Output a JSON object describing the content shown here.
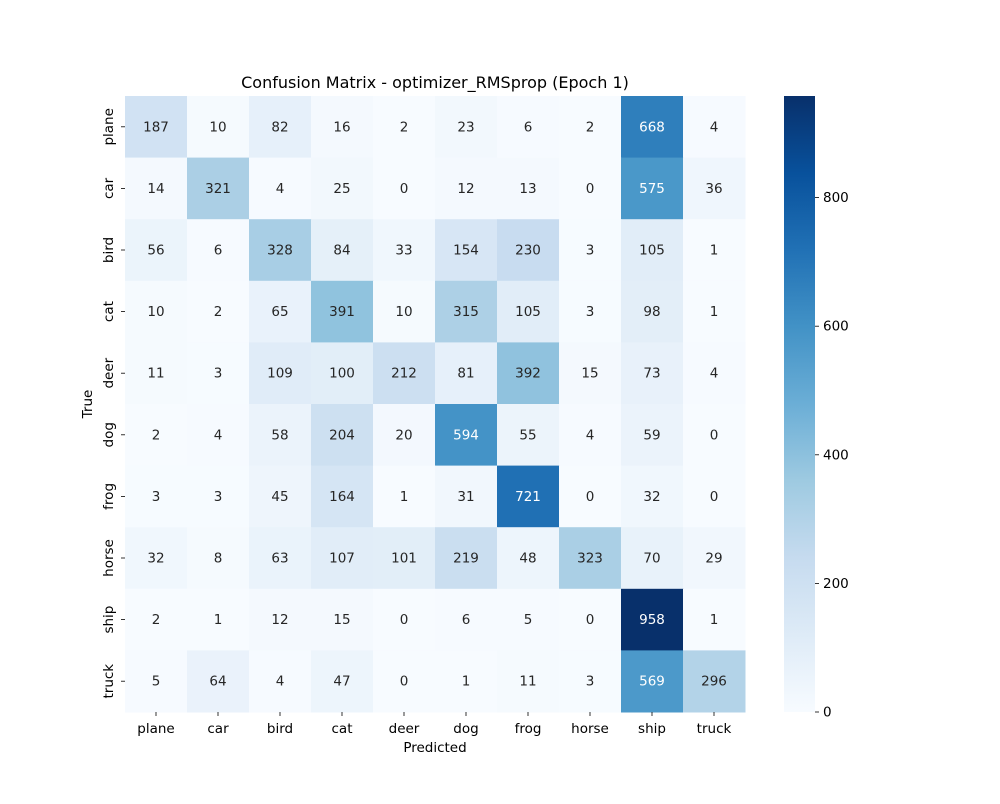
{
  "chart_data": {
    "type": "heatmap",
    "title": "Confusion Matrix - optimizer_RMSprop (Epoch 1)",
    "xlabel": "Predicted",
    "ylabel": "True",
    "x_categories": [
      "plane",
      "car",
      "bird",
      "cat",
      "deer",
      "dog",
      "frog",
      "horse",
      "ship",
      "truck"
    ],
    "y_categories": [
      "plane",
      "car",
      "bird",
      "cat",
      "deer",
      "dog",
      "frog",
      "horse",
      "ship",
      "truck"
    ],
    "values": [
      [
        187,
        10,
        82,
        16,
        2,
        23,
        6,
        2,
        668,
        4
      ],
      [
        14,
        321,
        4,
        25,
        0,
        12,
        13,
        0,
        575,
        36
      ],
      [
        56,
        6,
        328,
        84,
        33,
        154,
        230,
        3,
        105,
        1
      ],
      [
        10,
        2,
        65,
        391,
        10,
        315,
        105,
        3,
        98,
        1
      ],
      [
        11,
        3,
        109,
        100,
        212,
        81,
        392,
        15,
        73,
        4
      ],
      [
        2,
        4,
        58,
        204,
        20,
        594,
        55,
        4,
        59,
        0
      ],
      [
        3,
        3,
        45,
        164,
        1,
        31,
        721,
        0,
        32,
        0
      ],
      [
        32,
        8,
        63,
        107,
        101,
        219,
        48,
        323,
        70,
        29
      ],
      [
        2,
        1,
        12,
        15,
        0,
        6,
        5,
        0,
        958,
        1
      ],
      [
        5,
        64,
        4,
        47,
        0,
        1,
        11,
        3,
        569,
        296
      ]
    ],
    "colormap": "Blues",
    "color_range": [
      0,
      958
    ],
    "colorbar_ticks": [
      0,
      200,
      400,
      600,
      800
    ],
    "annotated": true,
    "grid": false
  }
}
